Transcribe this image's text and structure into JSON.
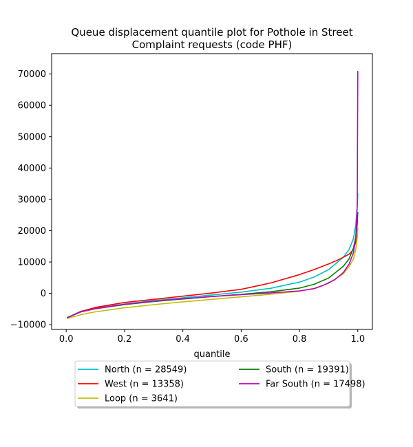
{
  "chart_data": {
    "type": "line",
    "title": "Queue displacement quantile plot for Pothole in Street\nComplaint  requests (code PHF)",
    "xlabel": "quantile",
    "ylabel": "",
    "xlim": [
      -0.05,
      1.05
    ],
    "ylim": [
      -11500,
      76500
    ],
    "xticks": [
      0.0,
      0.2,
      0.4,
      0.6,
      0.8,
      1.0
    ],
    "xtick_labels": [
      "0.0",
      "0.2",
      "0.4",
      "0.6",
      "0.8",
      "1.0"
    ],
    "yticks": [
      -10000,
      0,
      10000,
      20000,
      30000,
      40000,
      50000,
      60000,
      70000
    ],
    "ytick_labels": [
      "−10000",
      "0",
      "10000",
      "20000",
      "30000",
      "40000",
      "50000",
      "60000",
      "70000"
    ],
    "grid": false,
    "legend": {
      "placement": "below plot",
      "columns": 2
    },
    "series": [
      {
        "name": "North (n = 28549)",
        "color": "#00bfbf",
        "x": [
          0.003,
          0.05,
          0.1,
          0.2,
          0.3,
          0.4,
          0.5,
          0.6,
          0.7,
          0.8,
          0.85,
          0.9,
          0.95,
          0.97,
          0.985,
          0.993,
          0.998,
          1.0
        ],
        "y": [
          -7800,
          -5700,
          -4700,
          -3400,
          -2300,
          -1400,
          -500,
          400,
          1600,
          3600,
          5200,
          7600,
          11500,
          14000,
          17500,
          22000,
          28000,
          32000
        ]
      },
      {
        "name": "West (n = 13358)",
        "color": "#ff0000",
        "x": [
          0.003,
          0.05,
          0.1,
          0.2,
          0.3,
          0.4,
          0.5,
          0.6,
          0.7,
          0.8,
          0.85,
          0.9,
          0.93,
          0.95,
          0.97,
          0.985,
          0.995,
          1.0
        ],
        "y": [
          -7800,
          -5800,
          -4500,
          -2900,
          -1900,
          -900,
          100,
          1300,
          3300,
          6000,
          7600,
          9400,
          10600,
          11500,
          12500,
          14000,
          17000,
          21000
        ]
      },
      {
        "name": "Loop (n = 3641)",
        "color": "#bfbf00",
        "x": [
          0.003,
          0.05,
          0.1,
          0.2,
          0.3,
          0.4,
          0.5,
          0.6,
          0.7,
          0.8,
          0.85,
          0.9,
          0.95,
          0.97,
          0.985,
          0.993,
          0.998,
          1.0
        ],
        "y": [
          -8000,
          -6800,
          -5900,
          -4600,
          -3600,
          -2700,
          -1900,
          -1100,
          -300,
          700,
          1600,
          3200,
          6200,
          8500,
          11000,
          14000,
          18000,
          21000
        ]
      },
      {
        "name": "South (n = 19391)",
        "color": "#008000",
        "x": [
          0.003,
          0.05,
          0.1,
          0.2,
          0.3,
          0.4,
          0.5,
          0.6,
          0.7,
          0.8,
          0.85,
          0.9,
          0.95,
          0.97,
          0.985,
          0.993,
          0.998,
          1.0
        ],
        "y": [
          -7800,
          -5900,
          -4900,
          -3600,
          -2600,
          -1800,
          -1000,
          -300,
          500,
          1700,
          2900,
          4900,
          8600,
          11000,
          14500,
          18000,
          22000,
          26000
        ]
      },
      {
        "name": "Far South (n = 17498)",
        "color": "#bf00bf",
        "x": [
          0.003,
          0.05,
          0.1,
          0.2,
          0.3,
          0.4,
          0.5,
          0.6,
          0.7,
          0.8,
          0.85,
          0.88,
          0.92,
          0.95,
          0.97,
          0.985,
          0.993,
          0.998,
          1.0
        ],
        "y": [
          -7700,
          -5900,
          -4900,
          -3500,
          -2500,
          -1700,
          -1000,
          -400,
          100,
          800,
          1500,
          2500,
          4300,
          6600,
          9300,
          13000,
          18000,
          28000,
          71000
        ]
      }
    ]
  }
}
